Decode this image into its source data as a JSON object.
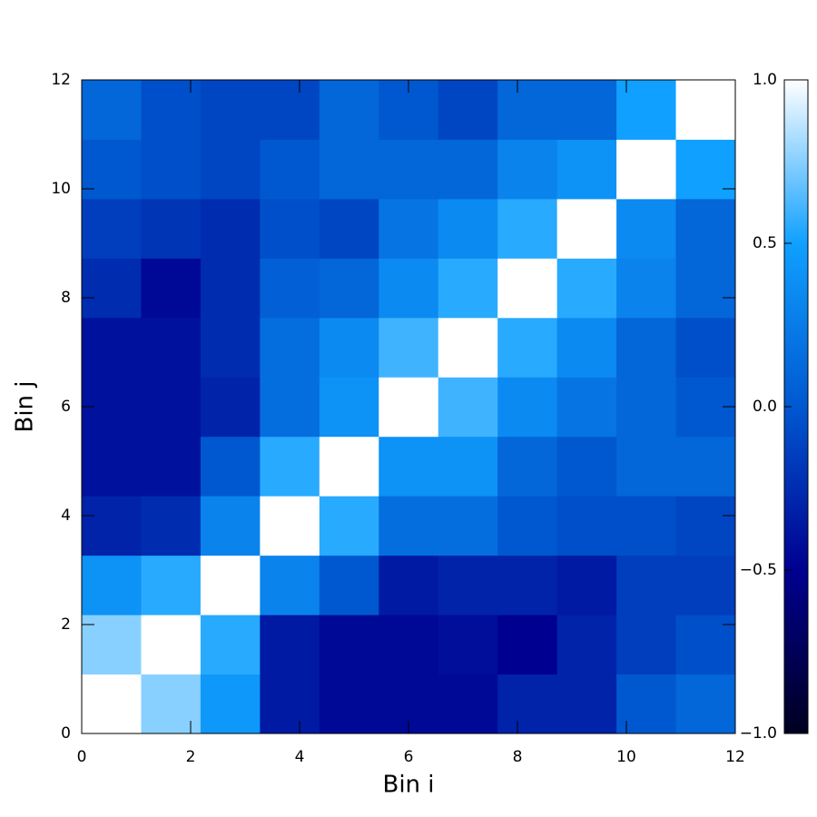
{
  "chart_data": {
    "type": "heatmap",
    "x_label": "Bin i",
    "y_label": "Bin j",
    "xlim": [
      0,
      12
    ],
    "ylim": [
      0,
      12
    ],
    "xticks": [
      0,
      2,
      4,
      6,
      8,
      10,
      12
    ],
    "yticks": [
      0,
      2,
      4,
      6,
      8,
      10,
      12
    ],
    "z": [
      [
        1.0,
        0.75,
        0.45,
        -0.35,
        -0.45,
        -0.45,
        -0.45,
        -0.3,
        -0.3,
        0.0,
        0.1
      ],
      [
        0.75,
        1.0,
        0.55,
        -0.35,
        -0.45,
        -0.45,
        -0.42,
        -0.5,
        -0.3,
        -0.15,
        -0.05
      ],
      [
        0.4,
        0.55,
        1.0,
        0.3,
        0.0,
        -0.35,
        -0.3,
        -0.3,
        -0.35,
        -0.15,
        -0.15
      ],
      [
        -0.3,
        -0.25,
        0.3,
        1.0,
        0.55,
        0.15,
        0.15,
        0.0,
        -0.05,
        -0.05,
        -0.1
      ],
      [
        -0.4,
        -0.4,
        0.0,
        0.55,
        1.0,
        0.4,
        0.4,
        0.1,
        0.0,
        0.1,
        0.1
      ],
      [
        -0.4,
        -0.4,
        -0.3,
        0.15,
        0.4,
        1.0,
        0.6,
        0.35,
        0.2,
        0.1,
        0.0
      ],
      [
        -0.4,
        -0.4,
        -0.25,
        0.15,
        0.35,
        0.6,
        1.0,
        0.55,
        0.35,
        0.1,
        -0.05
      ],
      [
        -0.25,
        -0.45,
        -0.25,
        0.05,
        0.1,
        0.35,
        0.55,
        1.0,
        0.55,
        0.3,
        0.1
      ],
      [
        -0.15,
        -0.2,
        -0.25,
        -0.05,
        -0.1,
        0.2,
        0.35,
        0.55,
        1.0,
        0.35,
        0.1
      ],
      [
        0.0,
        -0.05,
        -0.1,
        0.0,
        0.1,
        0.1,
        0.1,
        0.3,
        0.4,
        1.0,
        0.5
      ],
      [
        0.1,
        -0.05,
        -0.1,
        -0.1,
        0.1,
        0.0,
        -0.1,
        0.1,
        0.1,
        0.5,
        1.0
      ]
    ],
    "zlim": [
      -1,
      1
    ],
    "zticks": [
      {
        "value": -1,
        "label": "−1.0"
      },
      {
        "value": -0.5,
        "label": "−0.5"
      },
      {
        "value": 0,
        "label": "0.0"
      },
      {
        "value": 0.5,
        "label": "0.5"
      },
      {
        "value": 1,
        "label": "1.0"
      }
    ],
    "colorscale": [
      [
        -1,
        "#000020"
      ],
      [
        -0.5,
        "#000090"
      ],
      [
        0,
        "#0058d0"
      ],
      [
        0.5,
        "#10a0ff"
      ],
      [
        1,
        "#ffffff"
      ]
    ]
  }
}
